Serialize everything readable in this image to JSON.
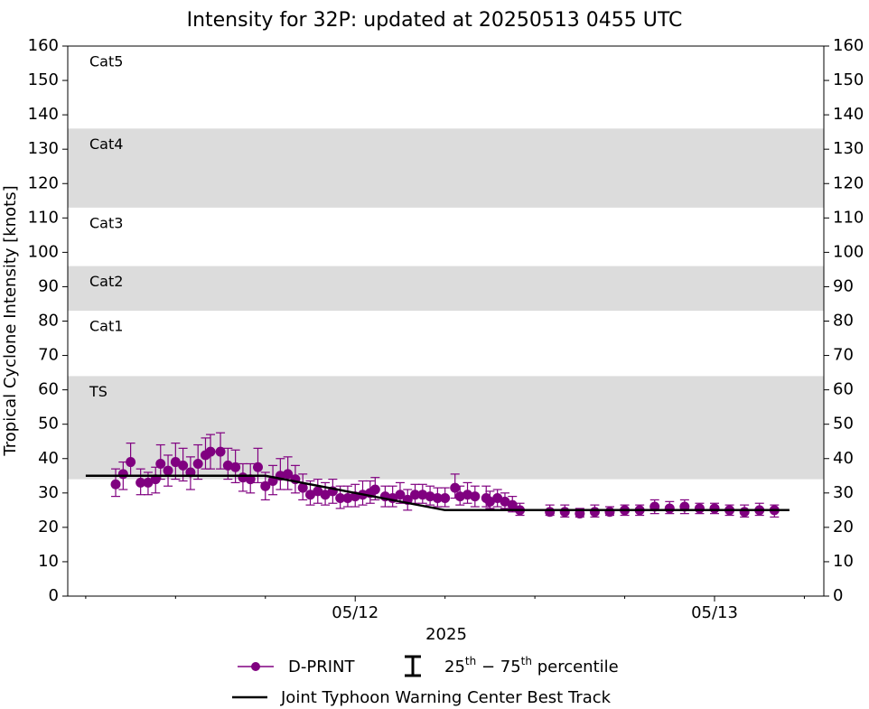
{
  "chart_data": {
    "type": "line",
    "title": "Intensity for 32P: updated at 20250513 0455 UTC",
    "ylabel": "Tropical Cyclone Intensity [knots]",
    "xlabel": "2025",
    "xlim": [
      "2025-05-11T04:48",
      "2025-05-13T07:18"
    ],
    "xticks": [
      {
        "value": "2025-05-12T00:00",
        "label": "05/12"
      },
      {
        "value": "2025-05-13T00:00",
        "label": "05/13"
      }
    ],
    "xminorticks": [
      "2025-05-11T06:00",
      "2025-05-11T12:00",
      "2025-05-11T18:00",
      "2025-05-12T06:00",
      "2025-05-12T12:00",
      "2025-05-12T18:00",
      "2025-05-13T06:00"
    ],
    "ylim": [
      0,
      160
    ],
    "yticks": [
      0,
      10,
      20,
      30,
      40,
      50,
      60,
      70,
      80,
      90,
      100,
      110,
      120,
      130,
      140,
      150,
      160
    ],
    "y2lim": [
      0,
      160
    ],
    "y2ticks": [
      0,
      10,
      20,
      30,
      40,
      50,
      60,
      70,
      80,
      90,
      100,
      110,
      120,
      130,
      140,
      150,
      160
    ],
    "intensity_bands": [
      {
        "label": "TS",
        "range": [
          34,
          64
        ],
        "shaded": true
      },
      {
        "label": "Cat1",
        "range": [
          64,
          83
        ],
        "shaded": false
      },
      {
        "label": "Cat2",
        "range": [
          83,
          96
        ],
        "shaded": true
      },
      {
        "label": "Cat3",
        "range": [
          96,
          113
        ],
        "shaded": false
      },
      {
        "label": "Cat4",
        "range": [
          113,
          136
        ],
        "shaded": true
      },
      {
        "label": "Cat5",
        "range": [
          136,
          160
        ],
        "shaded": false
      }
    ],
    "band_color": "#dcdcdc",
    "errorbar_label": [
      "25",
      "th",
      "−",
      "75",
      "th",
      "percentile"
    ],
    "series": [
      {
        "name": "D-PRINT",
        "color": "#800080",
        "marker": "circle",
        "x": [
          "2025-05-11T08:00",
          "2025-05-11T08:30",
          "2025-05-11T09:00",
          "2025-05-11T09:40",
          "2025-05-11T10:10",
          "2025-05-11T10:40",
          "2025-05-11T11:00",
          "2025-05-11T11:30",
          "2025-05-11T12:00",
          "2025-05-11T12:30",
          "2025-05-11T13:00",
          "2025-05-11T13:30",
          "2025-05-11T14:00",
          "2025-05-11T14:20",
          "2025-05-11T15:00",
          "2025-05-11T15:30",
          "2025-05-11T16:00",
          "2025-05-11T16:30",
          "2025-05-11T17:00",
          "2025-05-11T17:30",
          "2025-05-11T18:00",
          "2025-05-11T18:30",
          "2025-05-11T19:00",
          "2025-05-11T19:30",
          "2025-05-11T20:00",
          "2025-05-11T20:30",
          "2025-05-11T21:00",
          "2025-05-11T21:30",
          "2025-05-11T22:00",
          "2025-05-11T22:30",
          "2025-05-11T23:00",
          "2025-05-11T23:30",
          "2025-05-12T00:00",
          "2025-05-12T00:30",
          "2025-05-12T01:00",
          "2025-05-12T01:20",
          "2025-05-12T02:00",
          "2025-05-12T02:30",
          "2025-05-12T03:00",
          "2025-05-12T03:30",
          "2025-05-12T04:00",
          "2025-05-12T04:30",
          "2025-05-12T05:00",
          "2025-05-12T05:30",
          "2025-05-12T06:00",
          "2025-05-12T06:40",
          "2025-05-12T07:00",
          "2025-05-12T07:30",
          "2025-05-12T08:00",
          "2025-05-12T08:45",
          "2025-05-12T09:00",
          "2025-05-12T09:30",
          "2025-05-12T10:00",
          "2025-05-12T10:30",
          "2025-05-12T11:00",
          "2025-05-12T13:00",
          "2025-05-12T14:00",
          "2025-05-12T15:00",
          "2025-05-12T16:00",
          "2025-05-12T17:00",
          "2025-05-12T18:00",
          "2025-05-12T19:00",
          "2025-05-12T20:00",
          "2025-05-12T21:00",
          "2025-05-12T22:00",
          "2025-05-12T23:00",
          "2025-05-13T00:00",
          "2025-05-13T01:00",
          "2025-05-13T02:00",
          "2025-05-13T03:00",
          "2025-05-13T04:00"
        ],
        "values": [
          32.5,
          35.5,
          39,
          33,
          33,
          34,
          38.5,
          36.5,
          39,
          38,
          36,
          38.5,
          41,
          42,
          42,
          38,
          37.5,
          34.5,
          34,
          37.5,
          32,
          33.5,
          35,
          35.5,
          34,
          31.5,
          29.5,
          30.5,
          29.5,
          30.5,
          28.5,
          28.5,
          29,
          29.5,
          30,
          31,
          29,
          28.5,
          29.5,
          28,
          29.5,
          29.5,
          29,
          28.5,
          28.5,
          31.5,
          29,
          29.5,
          29,
          28.5,
          27.5,
          28.5,
          27.5,
          26.5,
          25,
          24.5,
          24.5,
          24,
          24.5,
          24.5,
          25,
          25,
          26,
          25.5,
          26,
          25.5,
          25.5,
          25,
          24.5,
          25,
          25
        ],
        "q25": [
          29,
          31,
          35,
          29.5,
          29.5,
          30,
          34,
          32,
          34,
          33.5,
          31,
          34,
          37,
          37,
          37,
          34,
          33,
          30.5,
          30,
          33,
          28,
          29.5,
          31,
          31,
          30,
          28,
          26.5,
          27,
          26.5,
          27,
          25.5,
          26,
          26,
          26.5,
          27,
          28,
          26,
          26,
          27,
          25,
          27,
          27,
          26.5,
          26,
          26,
          28.5,
          26.5,
          27,
          26,
          26,
          25.5,
          26,
          25.5,
          24.5,
          23.5,
          23.5,
          23,
          23,
          23,
          23.5,
          23.5,
          23.5,
          24,
          24,
          24,
          24,
          24,
          23.5,
          23,
          23.5,
          23
        ],
        "q75": [
          37,
          39,
          44.5,
          37,
          36,
          37.5,
          44,
          41,
          44.5,
          43,
          40.5,
          44,
          46,
          47,
          47.5,
          43,
          42.5,
          38.5,
          38.5,
          43,
          36,
          38,
          40,
          40.5,
          38,
          35.5,
          33.5,
          34,
          33,
          34,
          32,
          32,
          32.5,
          33.5,
          33.5,
          34.5,
          32,
          32,
          33,
          31,
          32.5,
          32.5,
          32,
          31.5,
          31.5,
          35.5,
          32,
          33,
          32,
          32,
          30.5,
          31,
          30,
          29,
          27,
          26.5,
          26.5,
          25.5,
          26.5,
          26,
          26.5,
          26.5,
          28,
          27.5,
          28,
          27,
          27,
          26.5,
          26.5,
          27,
          26.5
        ]
      },
      {
        "name": "Joint Typhoon Warning Center Best Track",
        "color": "#000000",
        "marker": "none",
        "x": [
          "2025-05-11T06:00",
          "2025-05-11T12:00",
          "2025-05-11T18:00",
          "2025-05-12T00:00",
          "2025-05-12T06:00",
          "2025-05-12T12:00",
          "2025-05-12T18:00",
          "2025-05-13T00:00",
          "2025-05-13T05:00"
        ],
        "values": [
          35,
          35,
          35,
          30,
          25,
          25,
          25,
          25,
          25
        ]
      }
    ]
  }
}
